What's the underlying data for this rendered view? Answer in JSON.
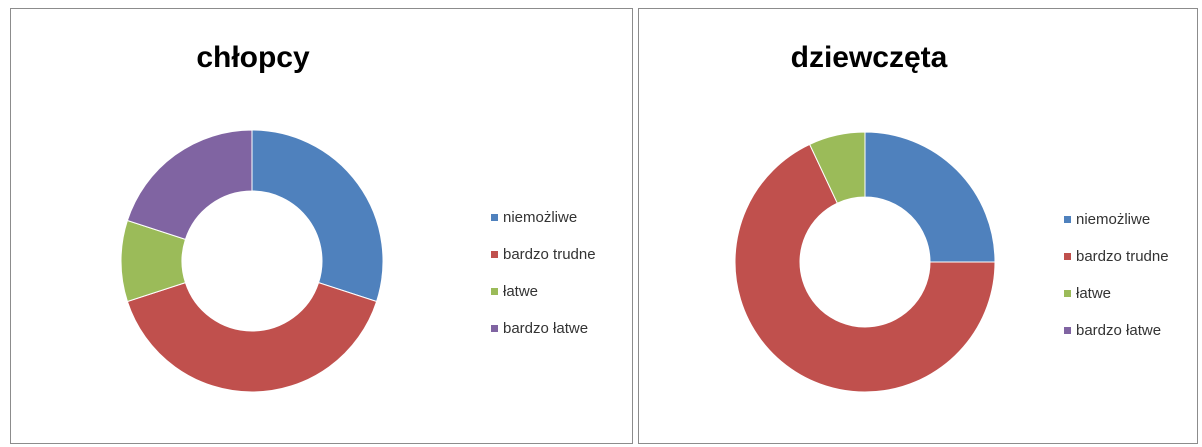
{
  "chart_data": [
    {
      "type": "donut",
      "title": "chłopcy",
      "categories": [
        "niemożliwe",
        "bardzo trudne",
        "łatwe",
        "bardzo łatwe"
      ],
      "values": [
        30,
        40,
        10,
        20
      ],
      "colors": [
        "#4f81bd",
        "#c0504d",
        "#9bbb59",
        "#8064a2"
      ],
      "legend_position": "right"
    },
    {
      "type": "donut",
      "title": "dziewczęta",
      "categories": [
        "niemożliwe",
        "bardzo trudne",
        "łatwe",
        "bardzo łatwe"
      ],
      "values": [
        25,
        68,
        7,
        0
      ],
      "colors": [
        "#4f81bd",
        "#c0504d",
        "#9bbb59",
        "#8064a2"
      ],
      "legend_position": "right"
    }
  ]
}
